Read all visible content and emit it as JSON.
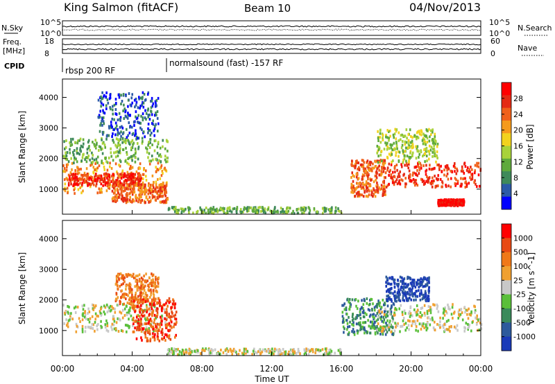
{
  "header": {
    "station": "King Salmon (fitACF)",
    "beam": "Beam 10",
    "date": "04/Nov/2013"
  },
  "top_panels": {
    "nsky_label": "N.Sky",
    "nsearch_label": "N.Search",
    "noise_ticks": [
      "10^5",
      "10^0"
    ],
    "freq_label": "Freq.",
    "freq_unit": "[MHz]",
    "freq_ticks": [
      "18",
      "8"
    ],
    "nave_label": "Nave",
    "nave_ticks": [
      "60",
      "0"
    ],
    "cpid_label": "CPID",
    "cpid_segments": [
      {
        "label": "rbsp 200 RF",
        "start_hour": 0,
        "end_hour": 6
      },
      {
        "label": "normalsound (fast) -157 RF",
        "start_hour": 6,
        "end_hour": 24
      }
    ]
  },
  "chart_data": [
    {
      "type": "heatmap",
      "panel": "power",
      "ylabel": "Slant Range [km]",
      "y_ticks": [
        1000,
        2000,
        3000,
        4000
      ],
      "ylim": [
        180,
        4600
      ],
      "xlim_hours": [
        0,
        24
      ],
      "colorbar": {
        "label": "Power [dB]",
        "ticks": [
          "4",
          "8",
          "12",
          "16",
          "20",
          "24",
          "28"
        ],
        "colors": [
          "#0000ff",
          "#2b5aa8",
          "#3f8a5a",
          "#5faa3c",
          "#a8d23a",
          "#f2d21e",
          "#f59a1c",
          "#f0601a",
          "#e52a14",
          "#ff0000"
        ]
      },
      "regions": [
        {
          "t0": 0.0,
          "t1": 6.0,
          "r0": 900,
          "r1": 1900,
          "level": 6
        },
        {
          "t0": 0.3,
          "t1": 4.5,
          "r0": 1150,
          "r1": 1550,
          "level": 8
        },
        {
          "t0": 2.8,
          "t1": 6.0,
          "r0": 600,
          "r1": 1200,
          "level": 7
        },
        {
          "t0": 0.0,
          "t1": 6.0,
          "r0": 1900,
          "r1": 2700,
          "level": 3
        },
        {
          "t0": 2.0,
          "t1": 5.5,
          "r0": 2700,
          "r1": 4200,
          "level": 1
        },
        {
          "t0": 6.0,
          "t1": 16.0,
          "r0": 250,
          "r1": 450,
          "level": 3
        },
        {
          "t0": 16.5,
          "t1": 18.5,
          "r0": 800,
          "r1": 2000,
          "level": 7
        },
        {
          "t0": 18.5,
          "t1": 24.0,
          "r0": 1100,
          "r1": 1900,
          "level": 8
        },
        {
          "t0": 18.0,
          "t1": 21.5,
          "r0": 1900,
          "r1": 3000,
          "level": 4
        },
        {
          "t0": 21.5,
          "t1": 23.0,
          "r0": 500,
          "r1": 700,
          "level": 9
        }
      ]
    },
    {
      "type": "heatmap",
      "panel": "velocity",
      "ylabel": "Slant Range [km]",
      "y_ticks": [
        1000,
        2000,
        3000,
        4000
      ],
      "ylim": [
        180,
        4600
      ],
      "xlim_hours": [
        0,
        24
      ],
      "colorbar": {
        "label": "Velocity [m s^-1]",
        "ticks": [
          "1000",
          "500",
          "100",
          "25",
          "-25",
          "-100",
          "-500",
          "-1000"
        ],
        "colors": [
          "#1a3ab8",
          "#2d5a9c",
          "#3a8a5a",
          "#5abf3a",
          "#c8c8c8",
          "#f0a030",
          "#f07818",
          "#e84a14",
          "#ff0000"
        ]
      },
      "regions": [
        {
          "t0": 0.0,
          "t1": 6.0,
          "r0": 1000,
          "r1": 1900,
          "level": 4
        },
        {
          "t0": 3.0,
          "t1": 5.5,
          "r0": 1900,
          "r1": 2900,
          "level": 6
        },
        {
          "t0": 4.0,
          "t1": 6.5,
          "r0": 700,
          "r1": 2100,
          "level": 7
        },
        {
          "t0": 16.0,
          "t1": 19.0,
          "r0": 900,
          "r1": 2100,
          "level": 2
        },
        {
          "t0": 18.0,
          "t1": 24.0,
          "r0": 1000,
          "r1": 1900,
          "level": 4
        },
        {
          "t0": 18.5,
          "t1": 21.0,
          "r0": 2000,
          "r1": 2800,
          "level": 0
        },
        {
          "t0": 6.0,
          "t1": 16.0,
          "r0": 250,
          "r1": 450,
          "level": 4
        }
      ]
    }
  ],
  "x_axis": {
    "label": "Time UT",
    "ticks": [
      "00:00",
      "04:00",
      "08:00",
      "12:00",
      "16:00",
      "20:00",
      "00:00"
    ],
    "tick_hours": [
      0,
      4,
      8,
      12,
      16,
      20,
      24
    ]
  }
}
